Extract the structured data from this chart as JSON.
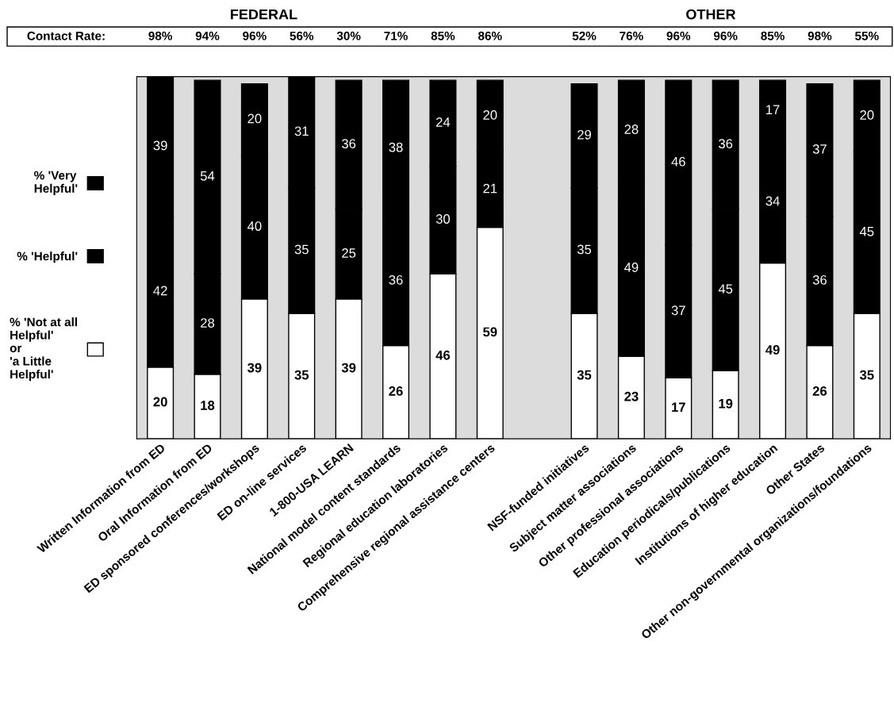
{
  "chart_data": {
    "type": "bar",
    "stacked": true,
    "data_labels": true,
    "legend": "left",
    "tick_labels": "x",
    "ylim": [
      0,
      101
    ],
    "categories": [
      "Written Information from ED",
      "Oral Information from ED",
      "ED sponsored conferences/workshops",
      "ED on-line services",
      "1-800-USA LEARN",
      "National model content standards",
      "Regional education laboratories",
      "Comprehensive regional assistance centers",
      null,
      "NSF-funded initiatives",
      "Subject matter associations",
      "Other professional associations",
      "Education periodicals/publications",
      "Institutions of higher education",
      "Other States",
      "Other non-governmental organizations/foundations"
    ],
    "series": [
      {
        "name": "% 'Not at all\nHelpful'\nor\n'a Little\nHelpful'",
        "color": "#ffffff",
        "values": [
          20,
          18,
          39,
          35,
          39,
          26,
          46,
          59,
          null,
          35,
          23,
          17,
          19,
          49,
          26,
          35
        ]
      },
      {
        "name": "% 'Helpful'",
        "color": "#000000",
        "values": [
          42,
          28,
          40,
          35,
          25,
          36,
          30,
          21,
          null,
          35,
          49,
          37,
          45,
          34,
          36,
          45
        ]
      },
      {
        "name": "% 'Very\nHelpful'",
        "color": "#000000",
        "values": [
          39,
          54,
          20,
          31,
          36,
          38,
          24,
          20,
          null,
          29,
          28,
          46,
          36,
          17,
          37,
          20
        ]
      }
    ],
    "annotations": [
      "FEDERAL",
      "OTHER",
      "Contact Rate:",
      "98%",
      "94%",
      "96%",
      "56%",
      "30%",
      "71%",
      "85%",
      "86%",
      "52%",
      "76%",
      "96%",
      "96%",
      "85%",
      "98%",
      "55%"
    ]
  }
}
